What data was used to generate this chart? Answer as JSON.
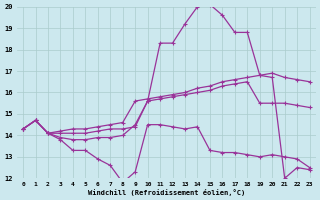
{
  "xlabel": "Windchill (Refroidissement éolien,°C)",
  "xlim": [
    -0.5,
    23.5
  ],
  "ylim": [
    12,
    20
  ],
  "yticks": [
    12,
    13,
    14,
    15,
    16,
    17,
    18,
    19,
    20
  ],
  "xticks": [
    0,
    1,
    2,
    3,
    4,
    5,
    6,
    7,
    8,
    9,
    10,
    11,
    12,
    13,
    14,
    15,
    16,
    17,
    18,
    19,
    20,
    21,
    22,
    23
  ],
  "bg_color": "#cce8ee",
  "line_color": "#993399",
  "grid_color": "#aacccc",
  "lines": [
    {
      "y": [
        14.3,
        14.7,
        14.1,
        13.9,
        13.8,
        13.8,
        13.9,
        13.9,
        14.0,
        14.5,
        15.6,
        18.3,
        18.3,
        19.2,
        20.0,
        20.1,
        19.6,
        18.8,
        18.8,
        16.8,
        16.7,
        12.0,
        12.5,
        12.4
      ]
    },
    {
      "y": [
        14.3,
        14.7,
        14.1,
        14.2,
        14.3,
        14.3,
        14.4,
        14.5,
        14.6,
        15.6,
        15.7,
        15.8,
        15.9,
        16.0,
        16.2,
        16.3,
        16.5,
        16.6,
        16.7,
        16.8,
        16.9,
        16.7,
        16.6,
        16.5
      ]
    },
    {
      "y": [
        14.3,
        14.7,
        14.1,
        14.1,
        14.1,
        14.1,
        14.2,
        14.3,
        14.3,
        14.4,
        15.6,
        15.7,
        15.8,
        15.9,
        16.0,
        16.1,
        16.3,
        16.4,
        16.5,
        15.5,
        15.5,
        15.5,
        15.4,
        15.3
      ]
    },
    {
      "y": [
        14.3,
        14.7,
        14.1,
        13.8,
        13.3,
        13.3,
        12.9,
        12.6,
        11.8,
        12.3,
        14.5,
        14.5,
        14.4,
        14.3,
        14.4,
        13.3,
        13.2,
        13.2,
        13.1,
        13.0,
        13.1,
        13.0,
        12.9,
        12.5
      ]
    }
  ]
}
